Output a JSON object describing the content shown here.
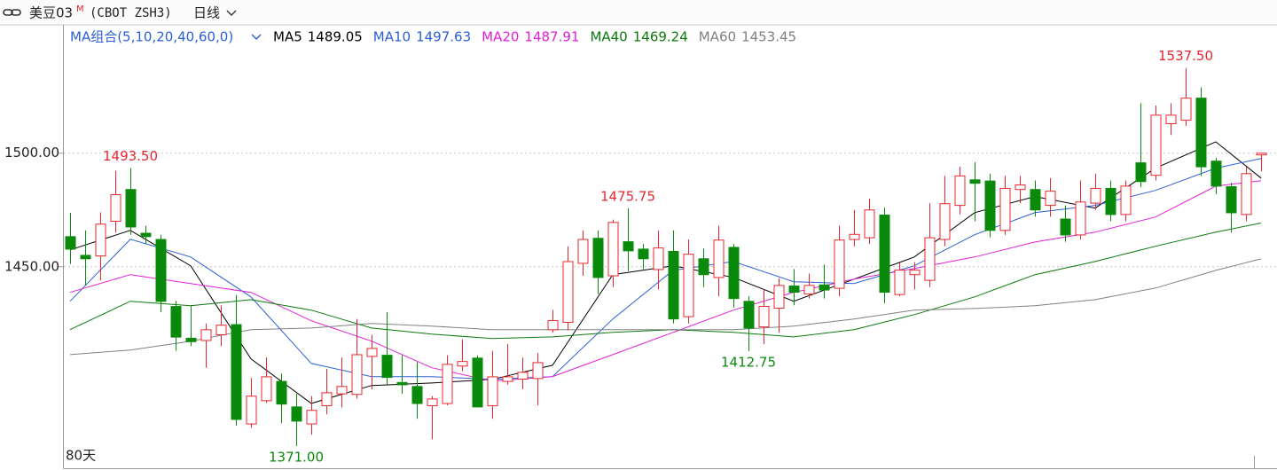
{
  "header": {
    "name": "美豆03",
    "badge": "M",
    "code": "(CBOT ZSH3)",
    "period": "日线"
  },
  "chart_data": {
    "type": "candlestick",
    "indicator": "MA组合(5,10,20,40,60,0)",
    "footer": "80天",
    "ylim": [
      1361.25,
      1555.75
    ],
    "yticks": [
      {
        "value": 1450,
        "label": "1450.00"
      },
      {
        "value": 1500,
        "label": "1500.00"
      }
    ],
    "grid": true,
    "up_color": "#e8262e",
    "down_color": "#0a8a0a",
    "candles": {
      "open": [
        1463.25,
        1455,
        1454.75,
        1470,
        1484,
        1464.75,
        1462,
        1432.5,
        1418.5,
        1417.5,
        1420,
        1424.5,
        1380.75,
        1391,
        1399.5,
        1388.25,
        1380.75,
        1388.75,
        1394,
        1393.75,
        1410.5,
        1411,
        1399,
        1397.25,
        1388.75,
        1389.75,
        1406.25,
        1409.75,
        1388.75,
        1399.5,
        1400.5,
        1400.75,
        1422.25,
        1425.5,
        1451.5,
        1462.5,
        1446,
        1461,
        1457.75,
        1448.75,
        1456.75,
        1428,
        1453.5,
        1445.25,
        1458.5,
        1434.75,
        1423.5,
        1431.75,
        1441.5,
        1438,
        1442,
        1440.5,
        1462,
        1462.75,
        1472.75,
        1437.75,
        1446.5,
        1444,
        1462,
        1477,
        1488.25,
        1487.75,
        1466,
        1484,
        1484,
        1477,
        1471,
        1464,
        1478,
        1484.5,
        1473,
        1495.75,
        1490.25,
        1513,
        1514.5,
        1524.25,
        1496.5,
        1485.25,
        1473,
        1499.25
      ],
      "high": [
        1473.75,
        1466,
        1474,
        1492.25,
        1493.5,
        1468,
        1464,
        1435,
        1433,
        1425,
        1433,
        1437.5,
        1401,
        1410,
        1403,
        1394,
        1393,
        1405,
        1410,
        1427,
        1420,
        1430,
        1411,
        1408,
        1393,
        1411,
        1418,
        1411,
        1413,
        1416,
        1410,
        1412,
        1431,
        1459,
        1466,
        1466,
        1470.75,
        1475.75,
        1460,
        1466,
        1466,
        1462,
        1458,
        1468,
        1460,
        1437,
        1440,
        1445,
        1449,
        1447,
        1451,
        1468,
        1475,
        1480,
        1476,
        1452,
        1452,
        1478,
        1490,
        1494,
        1496,
        1491,
        1490,
        1490,
        1488,
        1489,
        1477,
        1488,
        1491,
        1488,
        1488,
        1522,
        1521,
        1522,
        1537.5,
        1529,
        1498,
        1487,
        1494,
        1500
      ],
      "low": [
        1451.25,
        1441.75,
        1444,
        1465,
        1464,
        1460,
        1430,
        1413,
        1415,
        1405.5,
        1415,
        1380,
        1379,
        1390,
        1381,
        1371,
        1376,
        1385,
        1388,
        1392,
        1396,
        1398,
        1394,
        1383,
        1374,
        1389,
        1404,
        1388,
        1383,
        1398,
        1396,
        1389,
        1421,
        1422,
        1446,
        1438,
        1441,
        1448,
        1449,
        1440,
        1425,
        1425,
        1441,
        1437,
        1432,
        1412.75,
        1416,
        1421,
        1433,
        1436,
        1436,
        1437,
        1459,
        1460,
        1434,
        1437,
        1440,
        1441,
        1459,
        1473,
        1470,
        1463,
        1464,
        1478,
        1472,
        1472,
        1461,
        1462,
        1475,
        1470,
        1470,
        1485,
        1488,
        1508,
        1512,
        1490,
        1482,
        1465,
        1470,
        1492
      ],
      "close": [
        1457.75,
        1453.5,
        1468.75,
        1481.75,
        1467.5,
        1463.25,
        1434.75,
        1419,
        1417,
        1422.25,
        1424.25,
        1382.75,
        1393,
        1401.5,
        1389.5,
        1382,
        1386.75,
        1394.5,
        1397.25,
        1411.25,
        1414,
        1401.25,
        1398,
        1389.75,
        1391.75,
        1407,
        1408.25,
        1388.25,
        1401.5,
        1401.5,
        1403.5,
        1407.75,
        1426.25,
        1452.25,
        1462,
        1445.25,
        1469.5,
        1457,
        1453.5,
        1458.25,
        1427,
        1455.5,
        1446.5,
        1461.75,
        1436,
        1423,
        1432.5,
        1441.75,
        1438.75,
        1441.75,
        1439.75,
        1461.75,
        1464.25,
        1475,
        1438.75,
        1448.5,
        1448.5,
        1462.75,
        1477.75,
        1490,
        1486.75,
        1466,
        1484.5,
        1486,
        1475,
        1483.25,
        1464,
        1478.5,
        1484.5,
        1473,
        1485.5,
        1487.5,
        1516.75,
        1516.75,
        1524.25,
        1494,
        1485.5,
        1473.75,
        1491,
        1500
      ]
    },
    "lines": [
      {
        "name": "MA5",
        "color": "#000000",
        "x": [
          0,
          4,
          8,
          12,
          16,
          20,
          24,
          28,
          32,
          36,
          40,
          44,
          48,
          52,
          56,
          60,
          64,
          68,
          72,
          76,
          79
        ],
        "values": [
          1457.4,
          1466,
          1450.4,
          1409.4,
          1389.8,
          1397.7,
          1398.8,
          1400.4,
          1406.6,
          1446.5,
          1450.4,
          1445.3,
          1434.8,
          1444.5,
          1454.3,
          1473.8,
          1480.9,
          1475.8,
          1493.4,
          1505,
          1489.05
        ]
      },
      {
        "name": "MA10",
        "color": "#2a5fd6",
        "x": [
          0,
          4,
          8,
          12,
          16,
          20,
          24,
          28,
          32,
          36,
          40,
          44,
          48,
          52,
          56,
          60,
          64,
          68,
          72,
          76,
          79
        ],
        "values": [
          1434.8,
          1462.1,
          1454.3,
          1436.7,
          1407.4,
          1401.6,
          1401.6,
          1400.4,
          1401.6,
          1427,
          1448.4,
          1452.3,
          1443.4,
          1442.6,
          1450.4,
          1464.1,
          1473.8,
          1477,
          1483.6,
          1493.4,
          1497.63
        ]
      },
      {
        "name": "MA20",
        "color": "#e020d8",
        "x": [
          0,
          4,
          8,
          12,
          16,
          20,
          24,
          28,
          32,
          36,
          40,
          44,
          48,
          52,
          56,
          60,
          64,
          68,
          72,
          76,
          79
        ],
        "values": [
          1438.7,
          1446.5,
          1442.6,
          1438.7,
          1426.2,
          1417.2,
          1405.5,
          1399.6,
          1401.6,
          1411.3,
          1421.1,
          1430.9,
          1438.7,
          1444.5,
          1449.2,
          1454.3,
          1460.9,
          1465.2,
          1471.9,
          1485.5,
          1487.91
        ]
      },
      {
        "name": "MA40",
        "color": "#0a7a0a",
        "x": [
          0,
          4,
          8,
          12,
          16,
          20,
          24,
          28,
          32,
          36,
          40,
          44,
          48,
          52,
          56,
          60,
          64,
          68,
          72,
          76,
          79
        ],
        "values": [
          1422.3,
          1434.8,
          1432.8,
          1435.5,
          1430.9,
          1423,
          1420.3,
          1418.4,
          1419.1,
          1421.1,
          1422.3,
          1421.1,
          1419.1,
          1422.3,
          1428.9,
          1436.7,
          1446.5,
          1452.3,
          1459,
          1465.2,
          1469.24
        ]
      },
      {
        "name": "MA60",
        "color": "#808080",
        "x": [
          0,
          4,
          8,
          12,
          16,
          20,
          24,
          28,
          32,
          36,
          40,
          44,
          48,
          52,
          56,
          60,
          64,
          68,
          72,
          76,
          79
        ],
        "values": [
          1411.3,
          1413.3,
          1417.2,
          1422.3,
          1423,
          1425,
          1423.8,
          1422.3,
          1422.3,
          1422.3,
          1422.3,
          1422.3,
          1423.8,
          1427,
          1430.9,
          1431.6,
          1432.8,
          1435.5,
          1440.6,
          1448.4,
          1453.45
        ]
      }
    ],
    "annotations": [
      {
        "label": "1537.50",
        "value": 1537.5
      },
      {
        "label": "1493.50",
        "value": 1493.5
      },
      {
        "label": "1475.75",
        "value": 1475.75
      },
      {
        "label": "1412.75",
        "value": 1412.75
      },
      {
        "label": "1371.00",
        "value": 1371
      }
    ]
  }
}
